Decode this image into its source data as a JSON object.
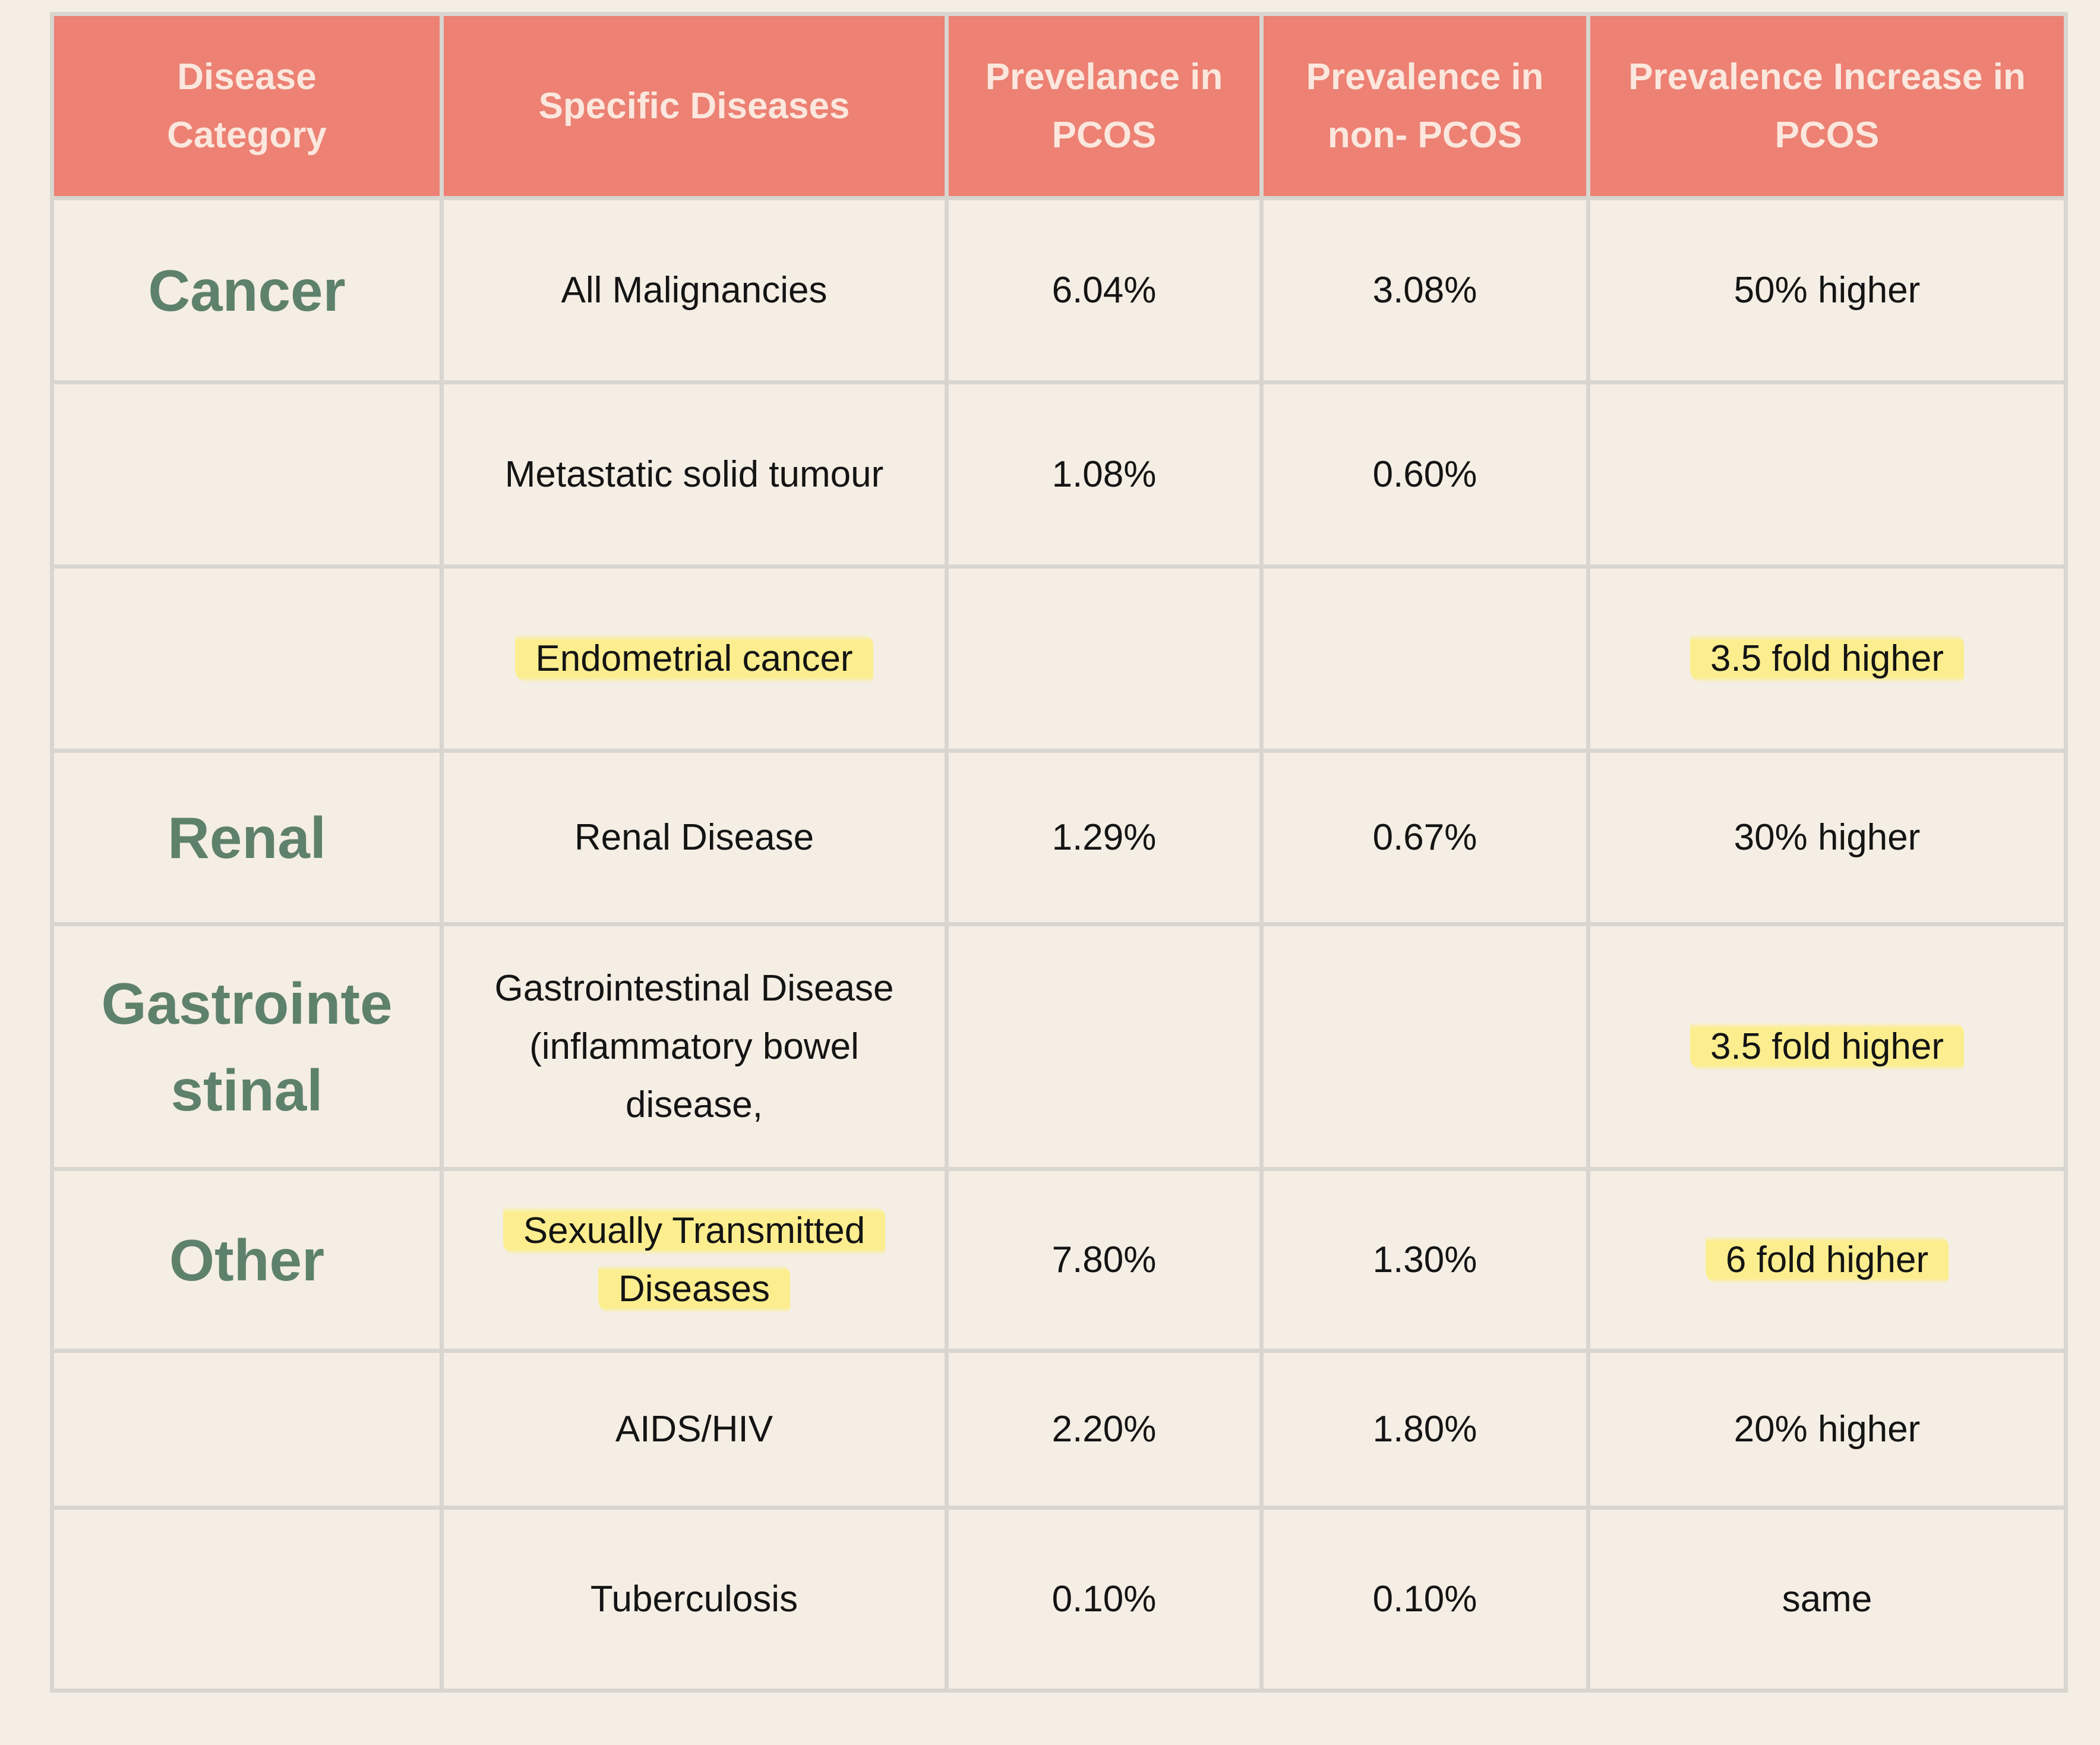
{
  "headers": [
    "Disease Category",
    "Specific Diseases",
    "Prevelance in PCOS",
    "Prevalence in non- PCOS",
    "Prevalence Increase in PCOS"
  ],
  "rows": [
    {
      "category": "Cancer",
      "disease": "All Malignancies",
      "pcos": "6.04%",
      "non_pcos": "3.08%",
      "increase": "50% higher"
    },
    {
      "category": "",
      "disease": "Metastatic solid tumour",
      "pcos": "1.08%",
      "non_pcos": "0.60%",
      "increase": ""
    },
    {
      "category": "",
      "disease": "Endometrial cancer",
      "pcos": "",
      "non_pcos": "",
      "increase": "3.5 fold higher"
    },
    {
      "category": "Renal",
      "disease": "Renal Disease",
      "pcos": "1.29%",
      "non_pcos": "0.67%",
      "increase": "30% higher"
    },
    {
      "category": "Gastrointe stinal",
      "disease": "Gastrointestinal Disease (inflammatory bowel disease,",
      "pcos": "",
      "non_pcos": "",
      "increase": "3.5 fold higher"
    },
    {
      "category": "Other",
      "disease": "Sexually Transmitted Diseases",
      "pcos": "7.80%",
      "non_pcos": "1.30%",
      "increase": "6 fold higher"
    },
    {
      "category": "",
      "disease": "AIDS/HIV",
      "pcos": "2.20%",
      "non_pcos": "1.80%",
      "increase": "20% higher"
    },
    {
      "category": "",
      "disease": "Tuberculosis",
      "pcos": "0.10%",
      "non_pcos": "0.10%",
      "increase": "same"
    }
  ],
  "colors": {
    "header_bg": "#EC8174",
    "header_text": "#FBE7DD",
    "page_bg": "#F4EEE4",
    "category_text": "#5E816B",
    "highlight": "#FCEE8E",
    "grid": "#D9D5CF"
  }
}
